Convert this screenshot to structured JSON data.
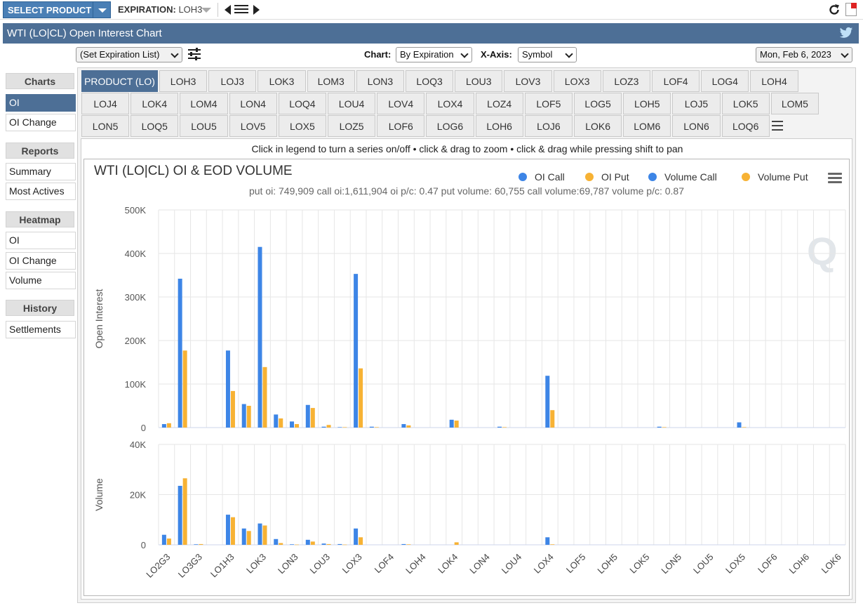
{
  "topbar": {
    "select_product": "SELECT PRODUCT",
    "expiration_label": "EXPIRATION:",
    "expiration_value": "LOH3"
  },
  "title": "WTI (LO|CL) Open Interest Chart",
  "controls": {
    "expiration_list": "(Set Expiration List)",
    "chart_label": "Chart:",
    "chart_value": "By Expiration",
    "xaxis_label": "X-Axis:",
    "xaxis_value": "Symbol",
    "date": "Mon, Feb 6, 2023"
  },
  "sidebar": {
    "sections": [
      {
        "head": "Charts",
        "items": [
          {
            "label": "OI",
            "active": true
          },
          {
            "label": "OI Change",
            "active": false
          }
        ]
      },
      {
        "head": "Reports",
        "items": [
          {
            "label": "Summary",
            "active": false
          },
          {
            "label": "Most Actives",
            "active": false
          }
        ]
      },
      {
        "head": "Heatmap",
        "items": [
          {
            "label": "OI",
            "active": false
          },
          {
            "label": "OI Change",
            "active": false
          },
          {
            "label": "Volume",
            "active": false
          }
        ]
      },
      {
        "head": "History",
        "items": [
          {
            "label": "Settlements",
            "active": false
          }
        ]
      }
    ]
  },
  "tabs": [
    [
      "PRODUCT (LO)",
      "LOH3",
      "LOJ3",
      "LOK3",
      "LOM3",
      "LON3",
      "LOQ3",
      "LOU3",
      "LOV3",
      "LOX3",
      "LOZ3",
      "LOF4",
      "LOG4",
      "LOH4"
    ],
    [
      "LOJ4",
      "LOK4",
      "LOM4",
      "LON4",
      "LOQ4",
      "LOU4",
      "LOV4",
      "LOX4",
      "LOZ4",
      "LOF5",
      "LOG5",
      "LOH5",
      "LOJ5",
      "LOK5",
      "LOM5"
    ],
    [
      "LON5",
      "LOQ5",
      "LOU5",
      "LOV5",
      "LOX5",
      "LOZ5",
      "LOF6",
      "LOG6",
      "LOH6",
      "LOJ6",
      "LOK6",
      "LOM6",
      "LON6",
      "LOQ6"
    ]
  ],
  "hint": "Click in legend to turn a series on/off • click & drag to zoom • click & drag while pressing shift to pan",
  "chart_data": {
    "type": "bar",
    "title": "WTI (LO|CL) OI & EOD VOLUME",
    "subtitle": "put oi: 749,909 call oi:1,611,904 oi p/c: 0.47 put volume: 60,755 call volume:69,787 volume p/c: 0.87",
    "legend": [
      "OI Call",
      "OI Put",
      "Volume Call",
      "Volume Put"
    ],
    "legend_position": "top-right",
    "colors": {
      "call": "#3d85e6",
      "put": "#f7b234"
    },
    "grid": true,
    "categories": [
      "LO2G3",
      "LO3G3",
      "LO1H3",
      "LOH3",
      "LOK3",
      "LOM3",
      "LON3",
      "LOQ3",
      "LOU3",
      "LOV3",
      "LOX3",
      "LOZ3",
      "LOF4",
      "LOG4",
      "LOH4",
      "LOJ4",
      "LOK4",
      "LOM4",
      "LON4",
      "LOQ4",
      "LOU4",
      "LOV4",
      "LOX4",
      "LOZ4",
      "LOF5",
      "LOG5",
      "LOH5",
      "LOJ5",
      "LOK5",
      "LOM5",
      "LON5",
      "LOQ5",
      "LOU5",
      "LOV5",
      "LOX5",
      "LOZ5",
      "LOF6",
      "LOG6",
      "LOH6",
      "LOJ6",
      "LOK6",
      "LOM6",
      "LON6"
    ],
    "tick_labels": [
      "LO2G3",
      "LO3G3",
      "LO1H3",
      "LOK3",
      "LON3",
      "LOU3",
      "LOX3",
      "LOF4",
      "LOH4",
      "LOK4",
      "LON4",
      "LOU4",
      "LOX4",
      "LOF5",
      "LOH5",
      "LOK5",
      "LON5",
      "LOU5",
      "LOX5",
      "LOF6",
      "LOH6",
      "LOK6",
      "LON6"
    ],
    "panels": [
      {
        "ylabel": "Open Interest",
        "ylim": [
          0,
          500000
        ],
        "ticks": [
          "0",
          "100K",
          "200K",
          "300K",
          "400K",
          "500K"
        ],
        "tick_values": [
          0,
          100000,
          200000,
          300000,
          400000,
          500000
        ],
        "series": [
          {
            "name": "OI Call",
            "values": [
              8000,
              342000,
              0,
              0,
              177000,
              54000,
              415000,
              30000,
              14000,
              52000,
              2000,
              1000,
              353000,
              2000,
              0,
              8000,
              0,
              0,
              18000,
              0,
              0,
              2000,
              0,
              0,
              119000,
              0,
              0,
              0,
              0,
              0,
              0,
              2000,
              0,
              0,
              0,
              0,
              12000,
              0,
              0,
              0,
              0,
              0,
              0
            ]
          },
          {
            "name": "OI Put",
            "values": [
              10000,
              177000,
              0,
              0,
              84000,
              50000,
              139000,
              21000,
              8000,
              45000,
              6000,
              1000,
              136000,
              1000,
              0,
              5000,
              0,
              0,
              16000,
              0,
              0,
              1000,
              0,
              0,
              40000,
              0,
              0,
              0,
              0,
              0,
              0,
              1000,
              0,
              0,
              0,
              0,
              1000,
              0,
              0,
              0,
              0,
              0,
              0
            ]
          }
        ]
      },
      {
        "ylabel": "Volume",
        "ylim": [
          0,
          40000
        ],
        "ticks": [
          "0",
          "20K",
          "40K"
        ],
        "tick_values": [
          0,
          20000,
          40000
        ],
        "series": [
          {
            "name": "Volume Call",
            "values": [
              4000,
              23500,
              200,
              0,
              12000,
              6500,
              8500,
              2300,
              200,
              2000,
              500,
              300,
              6500,
              0,
              0,
              300,
              0,
              0,
              0,
              0,
              0,
              0,
              0,
              0,
              3000,
              0,
              0,
              0,
              0,
              0,
              0,
              0,
              0,
              0,
              0,
              0,
              0,
              0,
              0,
              0,
              0,
              0,
              0
            ]
          },
          {
            "name": "Volume Put",
            "values": [
              2500,
              26500,
              300,
              0,
              11000,
              5500,
              7700,
              700,
              100,
              1300,
              300,
              100,
              3000,
              0,
              0,
              200,
              0,
              0,
              1000,
              0,
              0,
              0,
              0,
              0,
              200,
              0,
              0,
              0,
              0,
              0,
              0,
              0,
              0,
              0,
              0,
              0,
              0,
              0,
              0,
              0,
              0,
              0,
              0
            ]
          }
        ]
      }
    ]
  }
}
